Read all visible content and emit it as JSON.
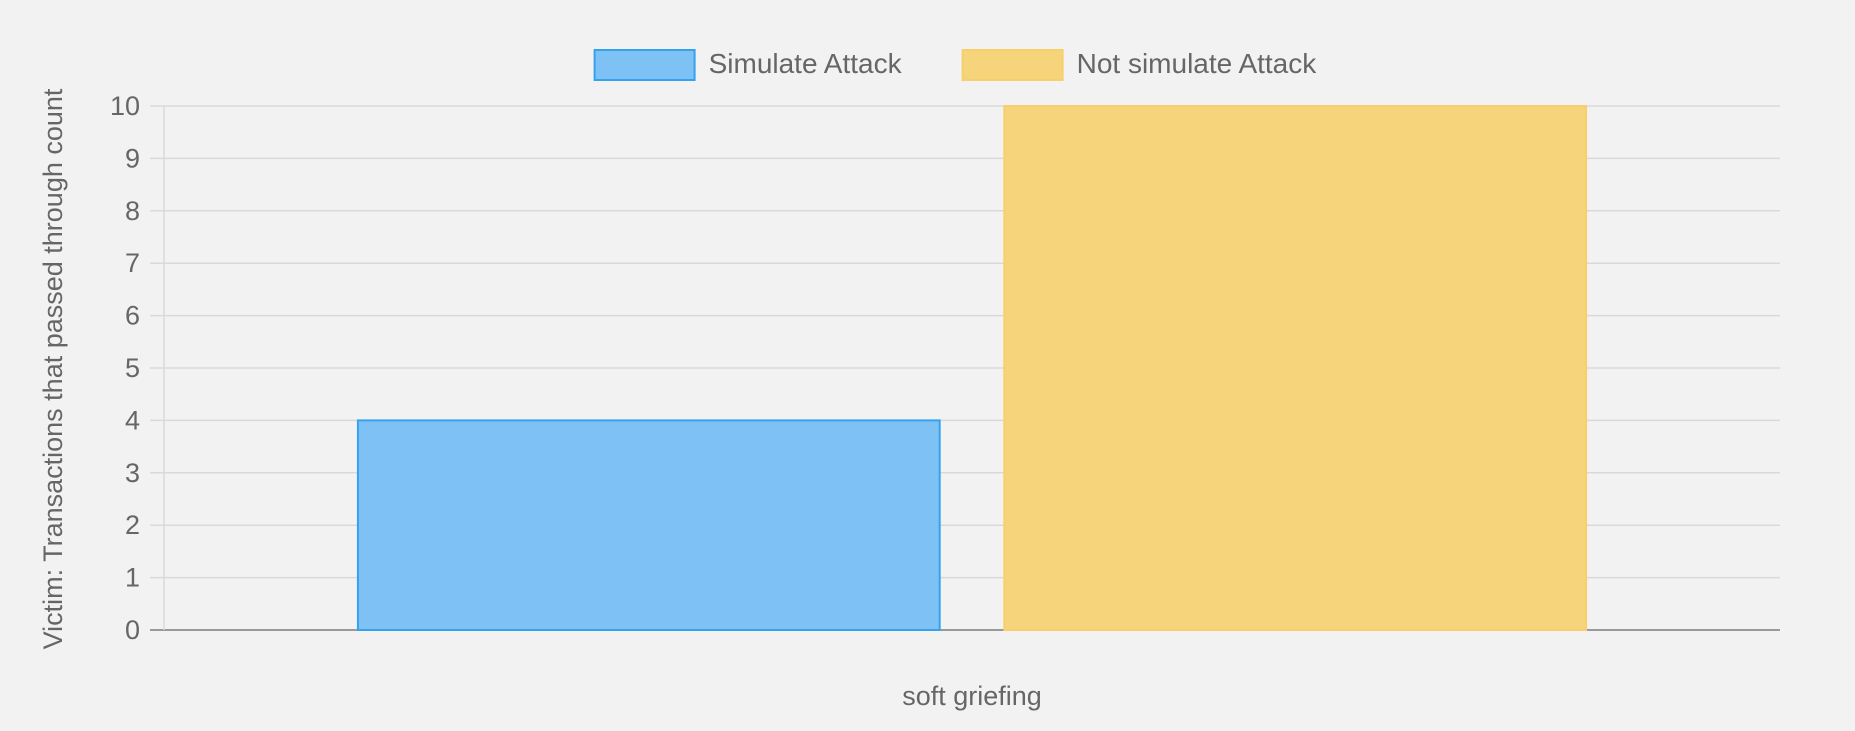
{
  "chart_data": {
    "type": "bar",
    "categories": [
      "soft griefing"
    ],
    "series": [
      {
        "name": "Simulate Attack",
        "values": [
          4
        ],
        "fill": "#7dc1f5",
        "stroke": "#36a2eb"
      },
      {
        "name": "Not simulate Attack",
        "values": [
          10
        ],
        "fill": "#f6d47c",
        "stroke": "#f7cf6b"
      }
    ],
    "xlabel": "",
    "ylabel": "Victim: Transactions that passed through count",
    "ylim": [
      0,
      10
    ],
    "yticks": [
      "0",
      "1",
      "2",
      "3",
      "4",
      "5",
      "6",
      "7",
      "8",
      "9",
      "10"
    ],
    "grid": true,
    "legend_position": "top-center"
  },
  "colors": {
    "background": "#f2f2f2",
    "grid": "#d9d9d9",
    "axis": "#999999",
    "text": "#666666"
  }
}
